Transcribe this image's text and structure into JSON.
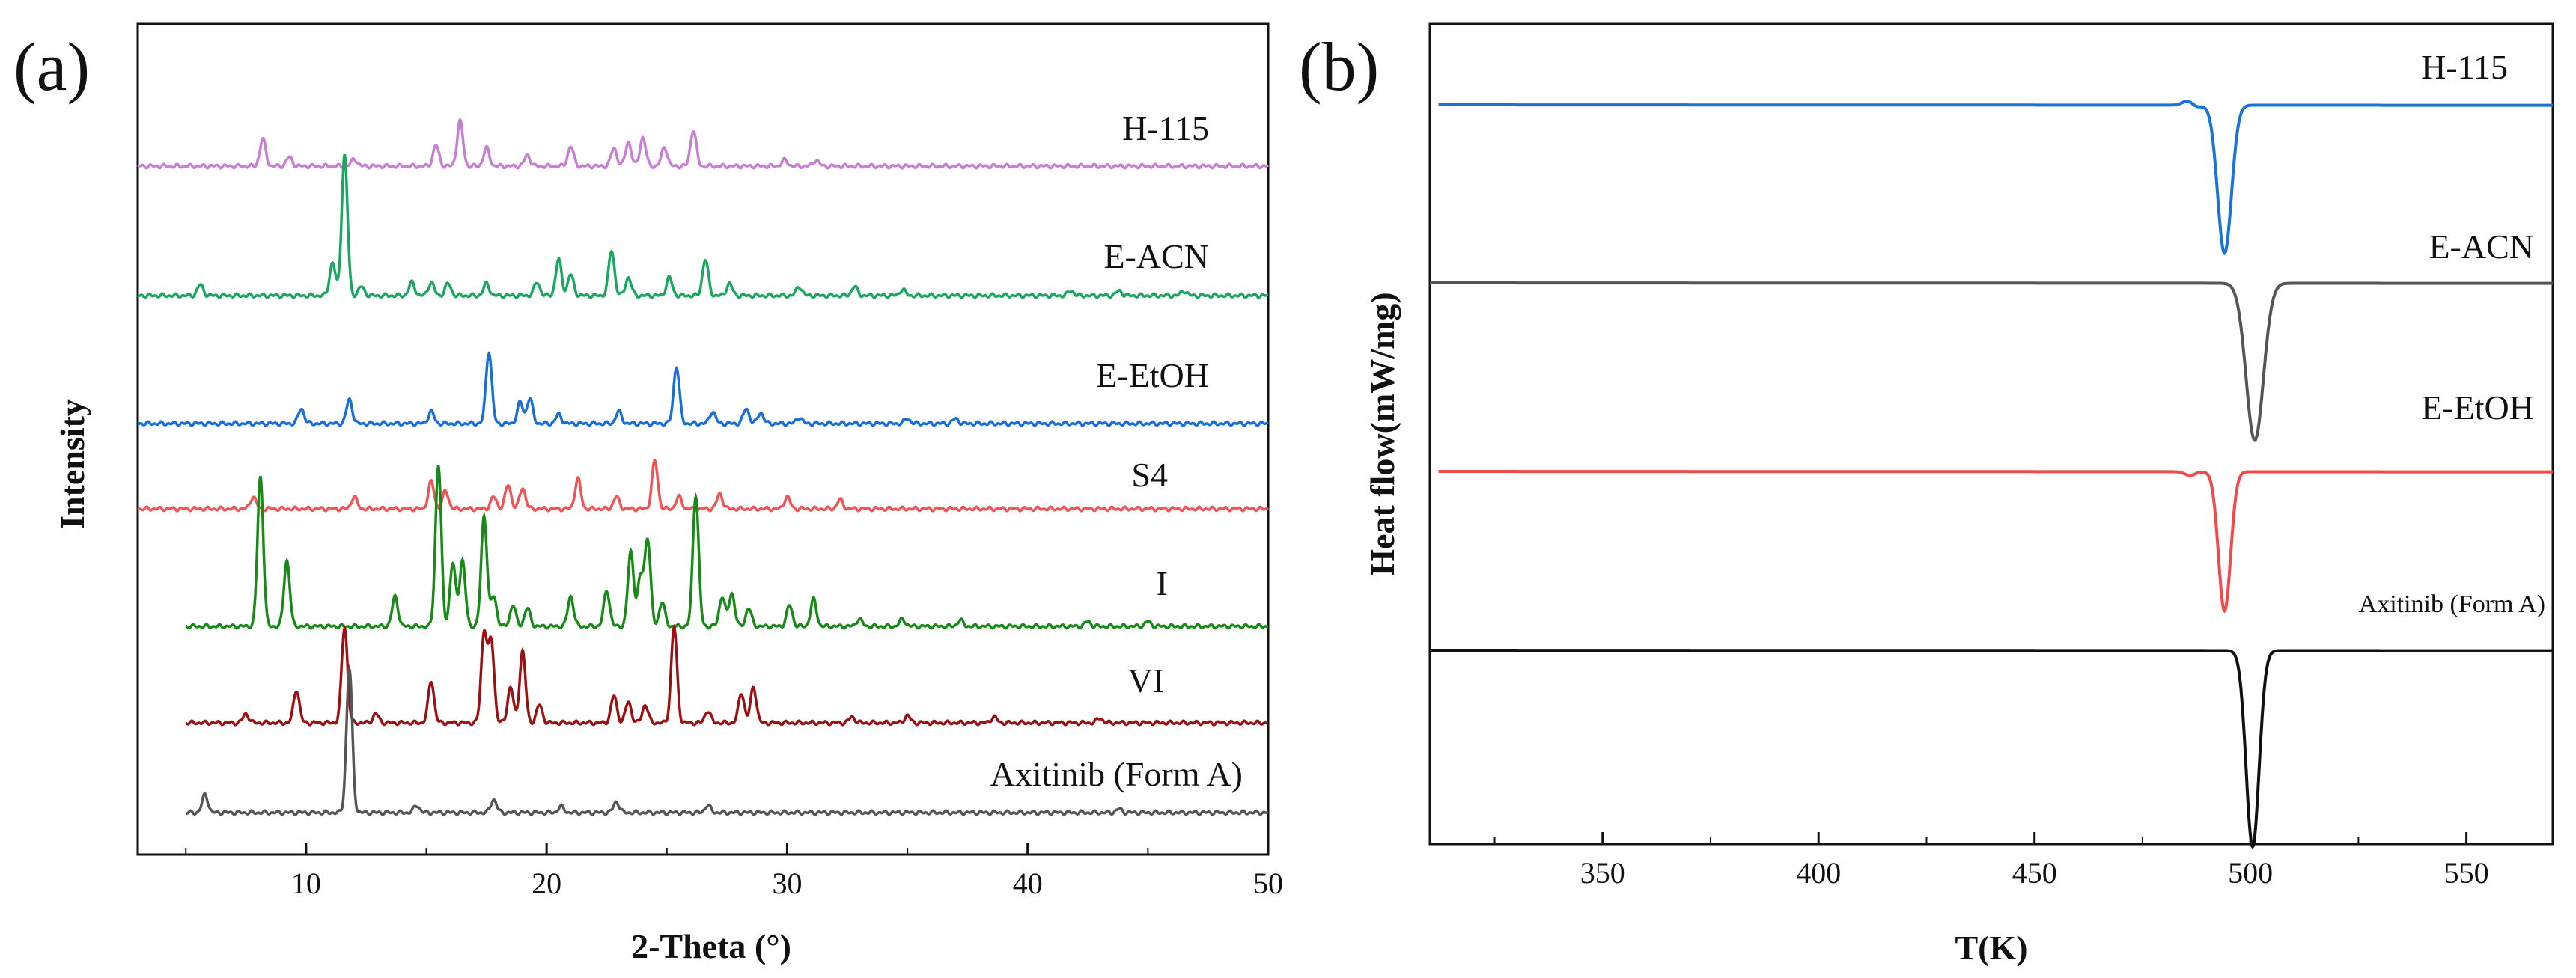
{
  "chart_data": [
    {
      "type": "line",
      "panel_label": "(a)",
      "title": "",
      "xlabel": "2-Theta (°)",
      "ylabel": "Intensity",
      "xlim": [
        3,
        50
      ],
      "xticks": [
        10,
        20,
        30,
        40,
        50
      ],
      "grid": false,
      "legend": "inline labels at right end of each stacked trace",
      "series": [
        {
          "name": "H-115",
          "color": "#c77fd4",
          "x_start": 3.0,
          "baseline": 0.0,
          "peaks": [
            [
              8.2,
              0.45
            ],
            [
              9.3,
              0.15
            ],
            [
              12.0,
              0.12
            ],
            [
              15.4,
              0.35
            ],
            [
              16.4,
              0.75
            ],
            [
              17.5,
              0.3
            ],
            [
              19.2,
              0.18
            ],
            [
              21.0,
              0.33
            ],
            [
              22.8,
              0.3
            ],
            [
              23.4,
              0.4
            ],
            [
              24.0,
              0.48
            ],
            [
              24.9,
              0.32
            ],
            [
              26.1,
              0.6
            ],
            [
              29.9,
              0.1
            ],
            [
              31.2,
              0.1
            ]
          ]
        },
        {
          "name": "E-ACN",
          "color": "#1aa860",
          "x_start": 3.0,
          "baseline": 0.0,
          "peaks": [
            [
              5.6,
              0.18
            ],
            [
              11.1,
              0.55
            ],
            [
              11.6,
              2.35
            ],
            [
              12.3,
              0.15
            ],
            [
              14.4,
              0.22
            ],
            [
              15.2,
              0.22
            ],
            [
              15.9,
              0.2
            ],
            [
              17.5,
              0.2
            ],
            [
              19.6,
              0.22
            ],
            [
              20.5,
              0.6
            ],
            [
              21.0,
              0.35
            ],
            [
              22.7,
              0.75
            ],
            [
              23.4,
              0.3
            ],
            [
              25.1,
              0.3
            ],
            [
              26.6,
              0.6
            ],
            [
              27.6,
              0.2
            ],
            [
              30.5,
              0.15
            ],
            [
              32.8,
              0.15
            ],
            [
              34.8,
              0.1
            ],
            [
              41.8,
              0.08
            ],
            [
              43.8,
              0.08
            ],
            [
              46.5,
              0.08
            ]
          ]
        },
        {
          "name": "E-EtOH",
          "color": "#1a6fd6",
          "x_start": 3.0,
          "baseline": 0.0,
          "peaks": [
            [
              9.8,
              0.25
            ],
            [
              11.8,
              0.4
            ],
            [
              15.2,
              0.2
            ],
            [
              17.6,
              1.2
            ],
            [
              18.9,
              0.35
            ],
            [
              19.3,
              0.42
            ],
            [
              20.5,
              0.15
            ],
            [
              23.0,
              0.2
            ],
            [
              25.4,
              0.95
            ],
            [
              26.9,
              0.2
            ],
            [
              28.3,
              0.25
            ],
            [
              28.9,
              0.18
            ],
            [
              30.5,
              0.1
            ],
            [
              35.0,
              0.08
            ],
            [
              37.0,
              0.08
            ]
          ]
        },
        {
          "name": "S4",
          "color": "#f05454",
          "x_start": 3.0,
          "baseline": 0.0,
          "peaks": [
            [
              7.8,
              0.2
            ],
            [
              12.0,
              0.2
            ],
            [
              15.2,
              0.45
            ],
            [
              15.8,
              0.3
            ],
            [
              17.8,
              0.2
            ],
            [
              18.4,
              0.4
            ],
            [
              19.0,
              0.35
            ],
            [
              21.3,
              0.5
            ],
            [
              22.9,
              0.2
            ],
            [
              24.5,
              0.8
            ],
            [
              25.5,
              0.2
            ],
            [
              27.2,
              0.25
            ],
            [
              30.0,
              0.2
            ],
            [
              32.2,
              0.15
            ]
          ]
        },
        {
          "name": "I",
          "color": "#178a17",
          "x_start": 5.0,
          "baseline": 0.0,
          "peaks": [
            [
              8.1,
              2.5
            ],
            [
              9.2,
              1.1
            ],
            [
              13.7,
              0.5
            ],
            [
              15.5,
              2.7
            ],
            [
              16.1,
              1.05
            ],
            [
              16.5,
              1.1
            ],
            [
              17.4,
              1.85
            ],
            [
              17.8,
              0.5
            ],
            [
              18.6,
              0.35
            ],
            [
              19.2,
              0.3
            ],
            [
              21.0,
              0.5
            ],
            [
              22.5,
              0.6
            ],
            [
              23.5,
              1.25
            ],
            [
              23.9,
              0.8
            ],
            [
              24.2,
              1.45
            ],
            [
              24.8,
              0.4
            ],
            [
              26.2,
              2.2
            ],
            [
              27.3,
              0.5
            ],
            [
              27.7,
              0.55
            ],
            [
              28.4,
              0.3
            ],
            [
              30.1,
              0.35
            ],
            [
              31.1,
              0.45
            ],
            [
              33.0,
              0.12
            ],
            [
              34.8,
              0.12
            ],
            [
              37.2,
              0.1
            ],
            [
              42.5,
              0.08
            ],
            [
              45.0,
              0.08
            ]
          ]
        },
        {
          "name": "VI",
          "color": "#9b1111",
          "x_start": 5.0,
          "baseline": 0.0,
          "peaks": [
            [
              7.5,
              0.15
            ],
            [
              9.6,
              0.55
            ],
            [
              11.6,
              1.6
            ],
            [
              12.9,
              0.15
            ],
            [
              15.2,
              0.7
            ],
            [
              17.4,
              1.5
            ],
            [
              17.7,
              1.35
            ],
            [
              18.5,
              0.6
            ],
            [
              19.0,
              1.2
            ],
            [
              19.7,
              0.3
            ],
            [
              22.8,
              0.45
            ],
            [
              23.4,
              0.35
            ],
            [
              24.1,
              0.3
            ],
            [
              25.3,
              1.6
            ],
            [
              26.7,
              0.2
            ],
            [
              28.1,
              0.5
            ],
            [
              28.6,
              0.6
            ],
            [
              32.7,
              0.1
            ],
            [
              35.0,
              0.12
            ],
            [
              38.6,
              0.1
            ],
            [
              43.0,
              0.08
            ]
          ]
        },
        {
          "name": "Axitinib (Form A)",
          "color": "#555555",
          "x_start": 5.0,
          "baseline": 0.0,
          "peaks": [
            [
              5.8,
              0.3
            ],
            [
              11.8,
              2.4
            ],
            [
              14.6,
              0.12
            ],
            [
              17.8,
              0.22
            ],
            [
              20.6,
              0.1
            ],
            [
              22.9,
              0.18
            ],
            [
              26.7,
              0.12
            ],
            [
              43.8,
              0.06
            ]
          ]
        }
      ]
    },
    {
      "type": "line",
      "panel_label": "(b)",
      "title": "",
      "xlabel": "T(K)",
      "ylabel": "Heat flow(mW/mg)",
      "xlim": [
        310,
        570
      ],
      "xticks": [
        350,
        400,
        450,
        500,
        550
      ],
      "grid": false,
      "legend": "inline labels above each stacked trace",
      "series": [
        {
          "name": "H-115",
          "color": "#1a73d9",
          "dip_center": 494.0,
          "dip_depth": 1.0,
          "events": [
            [
              485.5,
              0.1,
              "up"
            ],
            [
              487.5,
              0.05,
              "down"
            ]
          ]
        },
        {
          "name": "E-ACN",
          "color": "#555555",
          "dip_center": 501.0,
          "dip_depth": 1.0,
          "events": []
        },
        {
          "name": "E-EtOH",
          "color": "#f04a4a",
          "dip_center": 494.0,
          "dip_depth": 1.0,
          "events": [
            [
              486.0,
              0.08,
              "down"
            ]
          ]
        },
        {
          "name": "Axitinib (Form A)",
          "color": "#111111",
          "dip_center": 500.5,
          "dip_depth": 1.0,
          "events": []
        }
      ]
    }
  ]
}
